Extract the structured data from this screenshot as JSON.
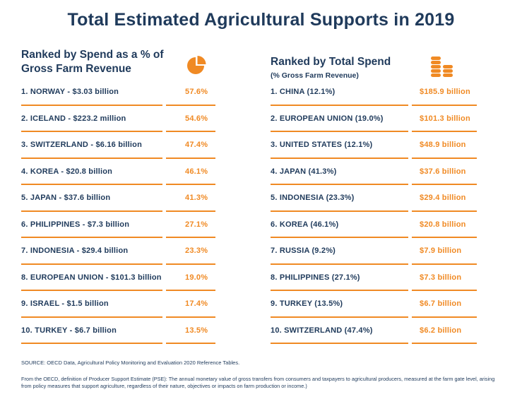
{
  "title": "Total Estimated Agricultural Supports in 2019",
  "left_panel": {
    "heading": "Ranked by Spend as a % of Gross Farm Revenue",
    "icon": "pie-chart-icon",
    "rows": [
      {
        "label": "1. NORWAY - $3.03 billion",
        "value": "57.6%"
      },
      {
        "label": "2. ICELAND - $223.2 million",
        "value": "54.6%"
      },
      {
        "label": "3. SWITZERLAND - $6.16 billion",
        "value": "47.4%"
      },
      {
        "label": "4. KOREA - $20.8 billion",
        "value": "46.1%"
      },
      {
        "label": "5. JAPAN - $37.6 billion",
        "value": "41.3%"
      },
      {
        "label": "6. PHILIPPINES - $7.3 billion",
        "value": "27.1%"
      },
      {
        "label": "7. INDONESIA - $29.4 billion",
        "value": "23.3%"
      },
      {
        "label": "8. EUROPEAN UNION - $101.3 billion",
        "value": "19.0%"
      },
      {
        "label": "9. ISRAEL - $1.5 billion",
        "value": "17.4%"
      },
      {
        "label": "10. TURKEY - $6.7 billion",
        "value": "13.5%"
      }
    ]
  },
  "right_panel": {
    "heading": "Ranked by Total Spend",
    "subheading": "(% Gross Farm Revenue)",
    "icon": "coin-stack-icon",
    "rows": [
      {
        "label": "1. CHINA (12.1%)",
        "value": "$185.9 billion"
      },
      {
        "label": "2. EUROPEAN UNION (19.0%)",
        "value": "$101.3 billion"
      },
      {
        "label": "3. UNITED STATES (12.1%)",
        "value": "$48.9 billion"
      },
      {
        "label": "4. JAPAN (41.3%)",
        "value": "$37.6 billion"
      },
      {
        "label": "5. INDONESIA (23.3%)",
        "value": "$29.4 billion"
      },
      {
        "label": "6. KOREA (46.1%)",
        "value": "$20.8 billion"
      },
      {
        "label": "7. RUSSIA (9.2%)",
        "value": "$7.9 billion"
      },
      {
        "label": "8. PHILIPPINES (27.1%)",
        "value": "$7.3 billion"
      },
      {
        "label": "9. TURKEY (13.5%)",
        "value": "$6.7 billion"
      },
      {
        "label": "10. SWITZERLAND (47.4%)",
        "value": "$6.2 billion"
      }
    ]
  },
  "source": "SOURCE: OECD Data, Agricultural Policy Monitoring and Evaluation 2020 Reference Tables.",
  "note": "From the OECD, definition of Producer Support Estimate (PSE): The annual monetary value of gross transfers from consumers and taxpayers to agricultural producers, measured at the farm gate level, arising from policy measures that support agriculture, regardless of their nature, objectives or impacts on farm production or income.)",
  "colors": {
    "accent": "#f08a24",
    "text": "#1f3a5b"
  }
}
